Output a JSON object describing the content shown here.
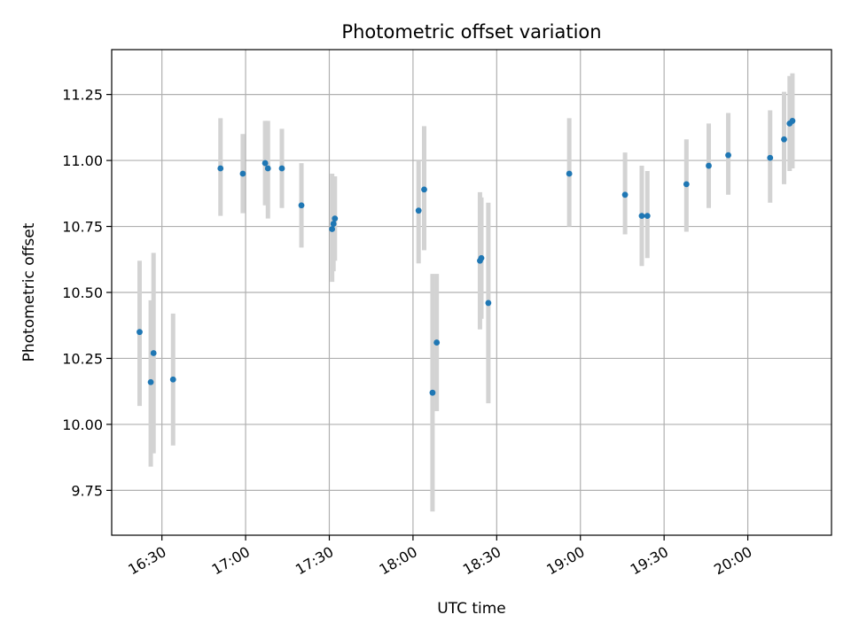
{
  "chart_data": {
    "type": "scatter",
    "title": "Photometric offset variation",
    "xlabel": "UTC time",
    "ylabel": "Photometric offset",
    "xlim": [
      "16:12",
      "20:30"
    ],
    "ylim": [
      9.58,
      11.42
    ],
    "x_ticks": [
      "16:30",
      "17:00",
      "17:30",
      "18:00",
      "18:30",
      "19:00",
      "19:30",
      "20:00"
    ],
    "y_ticks": [
      "9.75",
      "10.00",
      "10.25",
      "10.50",
      "10.75",
      "11.00",
      "11.25"
    ],
    "grid": true,
    "colors": {
      "point": "#1f77b4",
      "error_bar": "#d3d3d3",
      "grid": "#b0b0b0"
    },
    "series": [
      {
        "points": [
          {
            "time": "16:22",
            "y": 10.35,
            "low": 10.07,
            "high": 10.62
          },
          {
            "time": "16:26",
            "y": 10.16,
            "low": 9.84,
            "high": 10.47
          },
          {
            "time": "16:27",
            "y": 10.27,
            "low": 9.89,
            "high": 10.65
          },
          {
            "time": "16:34",
            "y": 10.17,
            "low": 9.92,
            "high": 10.42
          },
          {
            "time": "16:51",
            "y": 10.97,
            "low": 10.79,
            "high": 11.16
          },
          {
            "time": "16:59",
            "y": 10.95,
            "low": 10.8,
            "high": 11.1
          },
          {
            "time": "17:07",
            "y": 10.99,
            "low": 10.83,
            "high": 11.15
          },
          {
            "time": "17:08",
            "y": 10.97,
            "low": 10.78,
            "high": 11.15
          },
          {
            "time": "17:13",
            "y": 10.97,
            "low": 10.82,
            "high": 11.12
          },
          {
            "time": "17:20",
            "y": 10.83,
            "low": 10.67,
            "high": 10.99
          },
          {
            "time": "17:31",
            "y": 10.74,
            "low": 10.54,
            "high": 10.95
          },
          {
            "time": "17:31.5",
            "y": 10.76,
            "low": 10.58,
            "high": 10.94
          },
          {
            "time": "17:32",
            "y": 10.78,
            "low": 10.62,
            "high": 10.94
          },
          {
            "time": "18:02",
            "y": 10.81,
            "low": 10.61,
            "high": 11.0
          },
          {
            "time": "18:04",
            "y": 10.89,
            "low": 10.66,
            "high": 11.13
          },
          {
            "time": "18:07",
            "y": 10.12,
            "low": 9.67,
            "high": 10.57
          },
          {
            "time": "18:08.5",
            "y": 10.31,
            "low": 10.05,
            "high": 10.57
          },
          {
            "time": "18:24",
            "y": 10.62,
            "low": 10.36,
            "high": 10.88
          },
          {
            "time": "18:24.5",
            "y": 10.63,
            "low": 10.4,
            "high": 10.86
          },
          {
            "time": "18:27",
            "y": 10.46,
            "low": 10.08,
            "high": 10.84
          },
          {
            "time": "18:56",
            "y": 10.95,
            "low": 10.75,
            "high": 11.16
          },
          {
            "time": "19:16",
            "y": 10.87,
            "low": 10.72,
            "high": 11.03
          },
          {
            "time": "19:22",
            "y": 10.79,
            "low": 10.6,
            "high": 10.98
          },
          {
            "time": "19:24",
            "y": 10.79,
            "low": 10.63,
            "high": 10.96
          },
          {
            "time": "19:38",
            "y": 10.91,
            "low": 10.73,
            "high": 11.08
          },
          {
            "time": "19:46",
            "y": 10.98,
            "low": 10.82,
            "high": 11.14
          },
          {
            "time": "19:53",
            "y": 11.02,
            "low": 10.87,
            "high": 11.18
          },
          {
            "time": "20:08",
            "y": 11.01,
            "low": 10.84,
            "high": 11.19
          },
          {
            "time": "20:13",
            "y": 11.08,
            "low": 10.91,
            "high": 11.26
          },
          {
            "time": "20:15",
            "y": 11.14,
            "low": 10.96,
            "high": 11.32
          },
          {
            "time": "20:16",
            "y": 11.15,
            "low": 10.97,
            "high": 11.33
          }
        ]
      }
    ]
  }
}
